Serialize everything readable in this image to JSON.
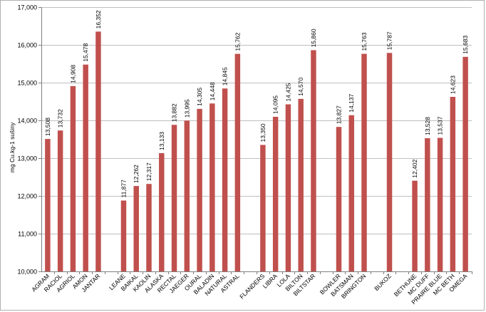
{
  "chart_data": {
    "type": "bar",
    "ylabel": "mg Cu.kg-1 sušiny",
    "ylim": [
      10000,
      17000
    ],
    "yticks": [
      10000,
      11000,
      12000,
      13000,
      14000,
      15000,
      16000,
      17000
    ],
    "ytick_labels": [
      "10,000",
      "11,000",
      "12,000",
      "13,000",
      "14,000",
      "15,000",
      "16,000",
      "17,000"
    ],
    "grid": "horizontal",
    "bar_color": "#c0504d",
    "groups": [
      {
        "categories": [
          "AGRAM",
          "RACIOL",
          "AGRIOL",
          "AMON",
          "JANTAR"
        ],
        "values": [
          13508,
          13732,
          14908,
          15478,
          16352
        ],
        "labels": [
          "13,508",
          "13,732",
          "14,908",
          "15,478",
          "16,352"
        ]
      },
      {
        "categories": [
          "LEANE",
          "BAIKAL",
          "KAOLIN",
          "ALASKA",
          "RECTAL",
          "JAEGER",
          "OURAL",
          "BALADIN",
          "NATURAL",
          "ASTRAL"
        ],
        "values": [
          11877,
          12262,
          12317,
          13133,
          13882,
          13995,
          14305,
          14448,
          14845,
          15762
        ],
        "labels": [
          "11,877",
          "12,262",
          "12,317",
          "13,133",
          "13,882",
          "13,995",
          "14,305",
          "14,448",
          "14,845",
          "15,762"
        ]
      },
      {
        "categories": [
          "FLANDERS",
          "LIBRA",
          "LOLA",
          "BILTON",
          "BILTSTAR"
        ],
        "values": [
          13350,
          14095,
          14425,
          14570,
          15860
        ],
        "labels": [
          "13,350",
          "14,095",
          "14,425",
          "14,570",
          "15,860"
        ]
      },
      {
        "categories": [
          "BOWLER",
          "BATSMAN",
          "BRINGTON"
        ],
        "values": [
          13827,
          14137,
          15763
        ],
        "labels": [
          "13,827",
          "14,137",
          "15,763"
        ]
      },
      {
        "categories": [
          "BUKOZ"
        ],
        "values": [
          15787
        ],
        "labels": [
          "15,787"
        ]
      },
      {
        "categories": [
          "BETHUNE",
          "MC DUFF",
          "PRAIRE BLUE",
          "MC BETH",
          "OMEGA"
        ],
        "values": [
          12402,
          13528,
          13537,
          14623,
          15683
        ],
        "labels": [
          "12,402",
          "13,528",
          "13,537",
          "14,623",
          "15,683"
        ]
      }
    ]
  }
}
